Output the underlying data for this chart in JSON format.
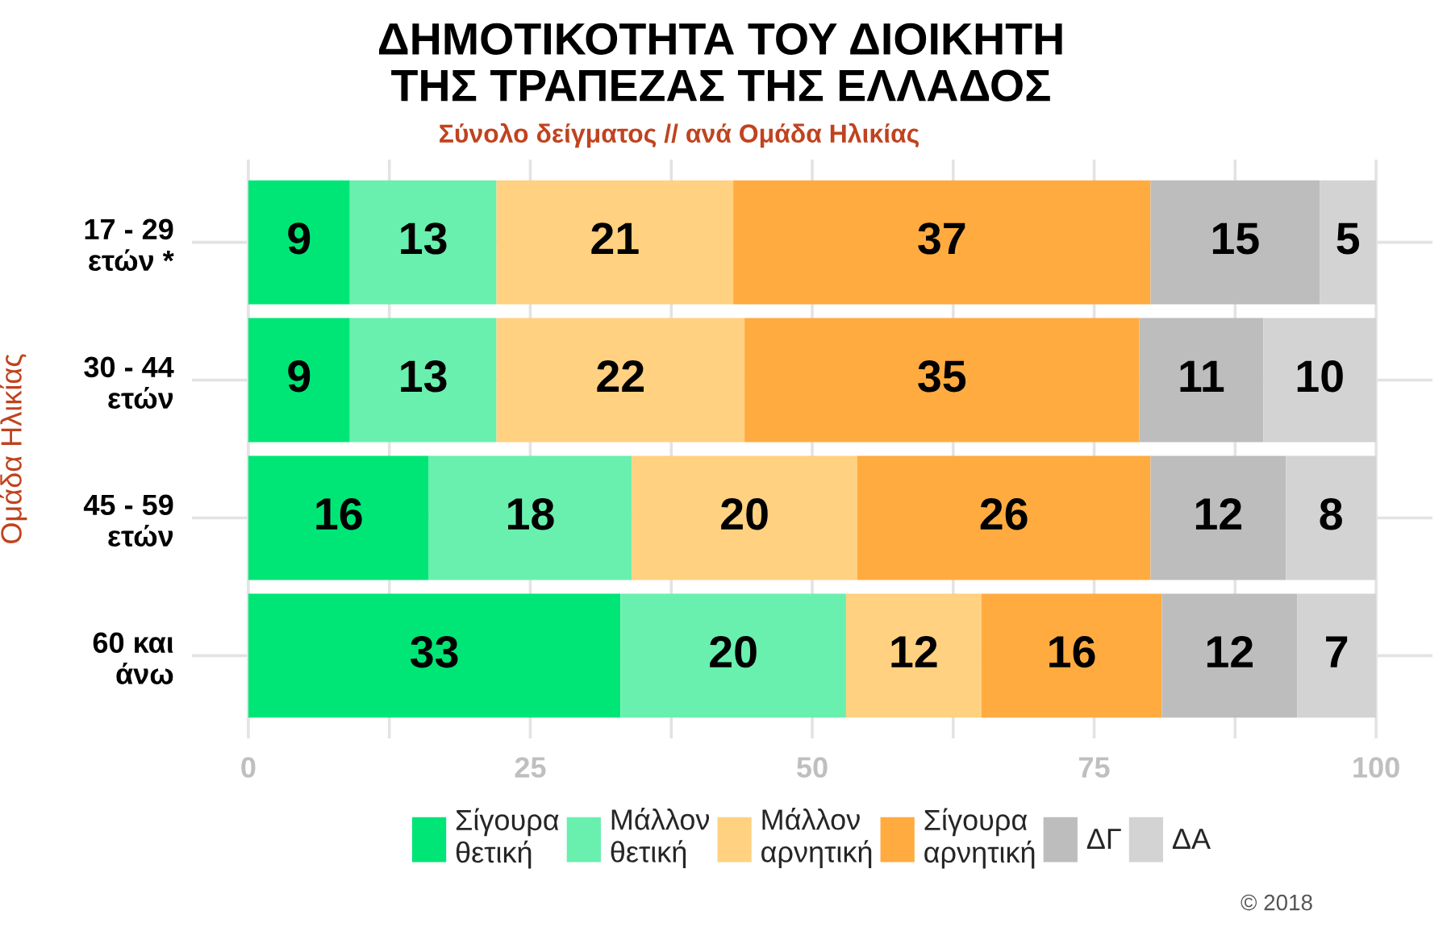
{
  "chart_data": {
    "type": "bar",
    "orientation": "horizontal",
    "stacked": true,
    "title": "ΔΗΜΟΤΙΚΟΤΗΤΑ ΤΟΥ ΔΙΟΙΚΗΤΗ\nΤΗΣ ΤΡΑΠΕΖΑΣ ΤΗΣ ΕΛΛΑΔΟΣ",
    "subtitle": "Σύνολο δείγματος // ανά Ομάδα Ηλικίας",
    "ylabel": "Ομάδα Ηλικίας",
    "categories": [
      "17 - 29\nετών *",
      "30 - 44\nετών",
      "45 - 59\nετών",
      "60 και\nάνω"
    ],
    "series": [
      {
        "name": "Σίγουρα\nθετική",
        "color": "#00e676",
        "values": [
          9,
          9,
          16,
          33
        ]
      },
      {
        "name": "Μάλλον\nθετική",
        "color": "#69f0ae",
        "values": [
          13,
          13,
          18,
          20
        ]
      },
      {
        "name": "Μάλλον\nαρνητική",
        "color": "#ffd180",
        "values": [
          21,
          22,
          20,
          12
        ]
      },
      {
        "name": "Σίγουρα\nαρνητική",
        "color": "#ffab40",
        "values": [
          37,
          35,
          26,
          16
        ]
      },
      {
        "name": "ΔΓ",
        "color": "#bdbdbd",
        "values": [
          15,
          11,
          12,
          12
        ]
      },
      {
        "name": "ΔΑ",
        "color": "#d3d3d3",
        "values": [
          5,
          10,
          8,
          7
        ]
      }
    ],
    "xlim": [
      -5,
      105
    ],
    "xticks": [
      0,
      {
        "value": 12.5,
        "label": null
      },
      25,
      {
        "value": 37.5,
        "label": null
      },
      50,
      {
        "value": 62.5,
        "label": null
      },
      75,
      {
        "value": 87.5,
        "label": null
      },
      100
    ],
    "grid": true,
    "legend": "bottom",
    "data_labels": true,
    "annotations": [
      "© 2018"
    ]
  }
}
